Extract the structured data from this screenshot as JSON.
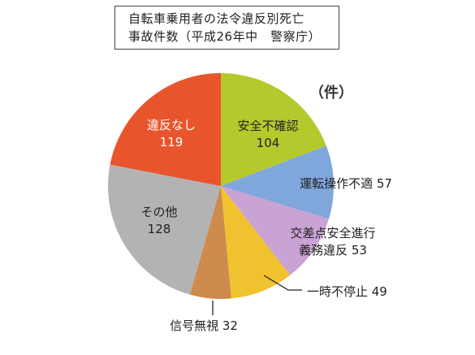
{
  "chart_data": {
    "type": "pie",
    "title": [
      "自転車乗用者の法令違反別死亡",
      "事故件数（平成26年中　警察庁）"
    ],
    "unit": "（件）",
    "slices": [
      {
        "label": [
          "安全不確認",
          "104"
        ],
        "value": 104,
        "color": "#b5c92d"
      },
      {
        "label": [
          "運転操作不適 57"
        ],
        "value": 57,
        "color": "#7fa7dc"
      },
      {
        "label": [
          "交差点安全進行",
          "義務違反 53"
        ],
        "value": 53,
        "color": "#c9a3d3"
      },
      {
        "label": [
          "一時不停止 49"
        ],
        "value": 49,
        "color": "#f1c230"
      },
      {
        "label": [
          "信号無視 32"
        ],
        "value": 32,
        "color": "#cf8a4d"
      },
      {
        "label": [
          "その他",
          "128"
        ],
        "value": 128,
        "color": "#b3b3b3"
      },
      {
        "label": [
          "違反なし",
          "119"
        ],
        "value": 119,
        "color": "#e8552c"
      }
    ],
    "start": "12-o'clock",
    "direction": "clockwise"
  }
}
